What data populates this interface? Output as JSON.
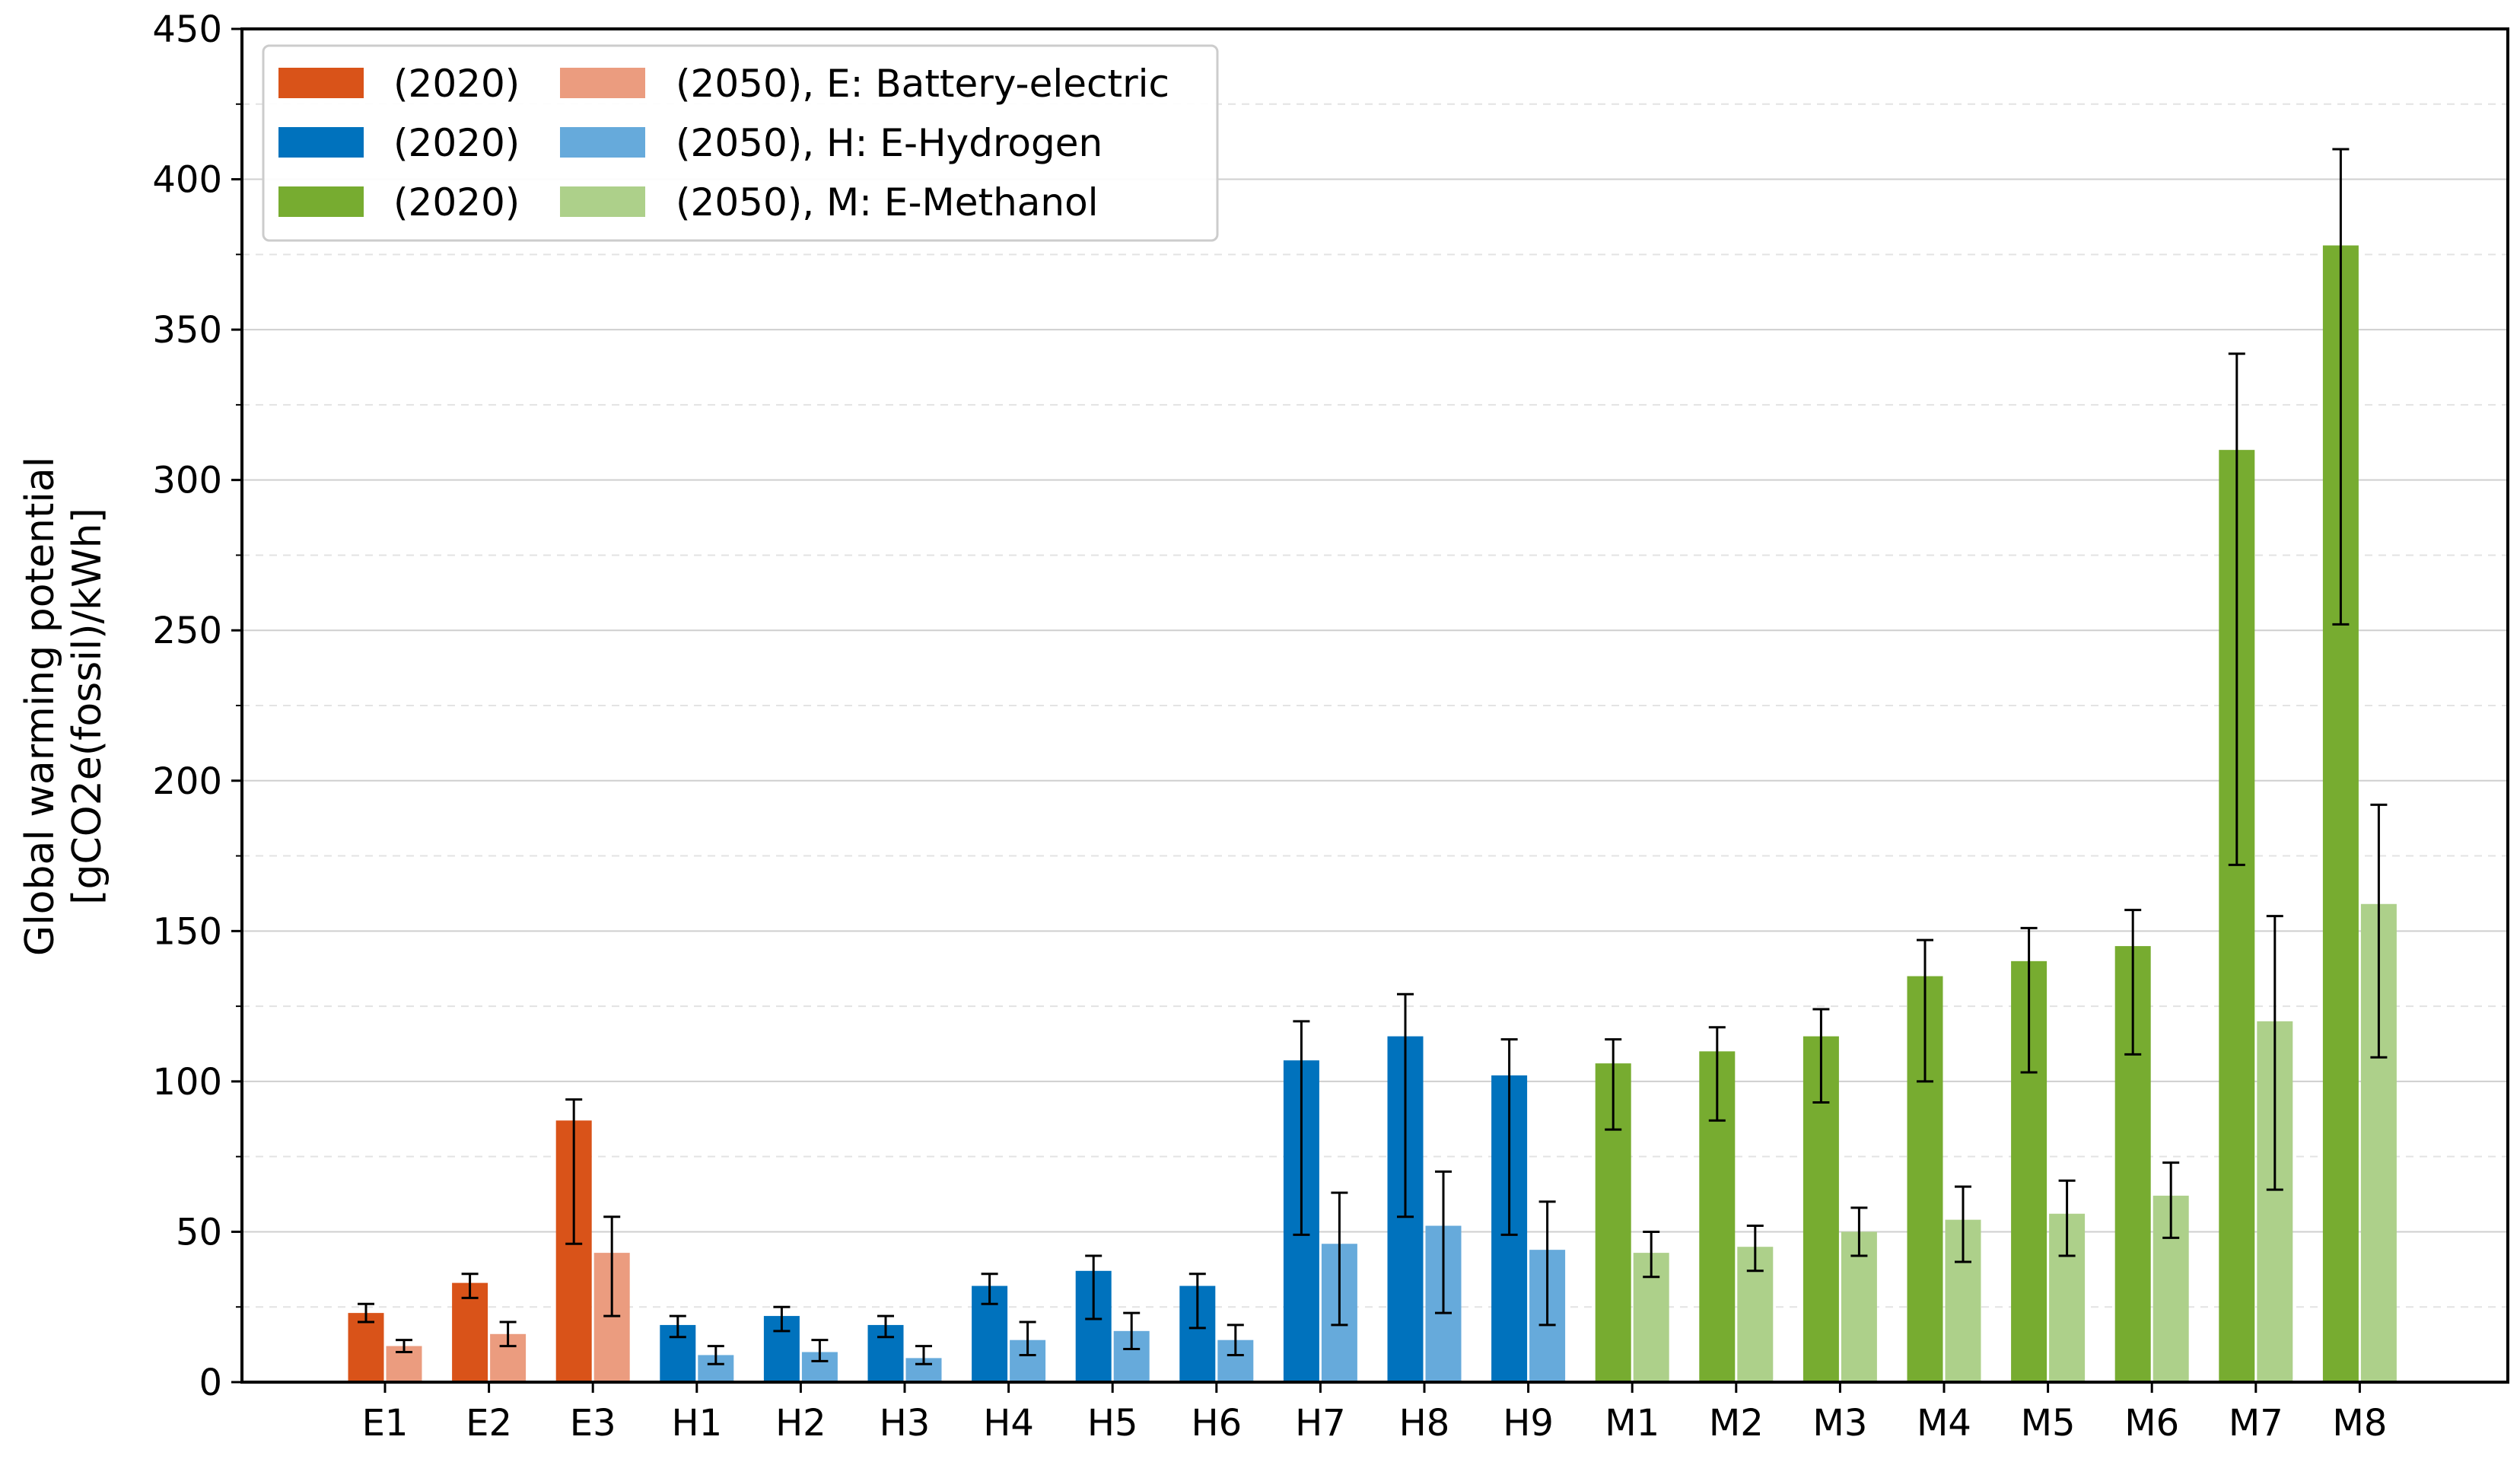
{
  "chart_data": {
    "type": "bar",
    "title": "",
    "xlabel": "",
    "ylabel_line1": "Global warming potential",
    "ylabel_line2": "[gCO2e(fossil)/kWh]",
    "ylim": [
      0,
      450
    ],
    "yticks": [
      0,
      50,
      100,
      150,
      200,
      250,
      300,
      350,
      400,
      450
    ],
    "grid": true,
    "legend_position": "top-left",
    "categories": [
      "E1",
      "E2",
      "E3",
      "H1",
      "H2",
      "H3",
      "H4",
      "H5",
      "H6",
      "H7",
      "H8",
      "H9",
      "M1",
      "M2",
      "M3",
      "M4",
      "M5",
      "M6",
      "M7",
      "M8"
    ],
    "groups": [
      {
        "key": "E",
        "name": "Battery-electric",
        "categories": [
          "E1",
          "E2",
          "E3"
        ],
        "color_2020": "#D95319",
        "color_2050": "#EB9C7F"
      },
      {
        "key": "H",
        "name": "E-Hydrogen",
        "categories": [
          "H1",
          "H2",
          "H3",
          "H4",
          "H5",
          "H6",
          "H7",
          "H8",
          "H9"
        ],
        "color_2020": "#0072BD",
        "color_2050": "#66AADB"
      },
      {
        "key": "M",
        "name": "E-Methanol",
        "categories": [
          "M1",
          "M2",
          "M3",
          "M4",
          "M5",
          "M6",
          "M7",
          "M8"
        ],
        "color_2020": "#77AC30",
        "color_2050": "#ADD08A"
      }
    ],
    "series": [
      {
        "name": "(2020)",
        "values": [
          23,
          33,
          87,
          19,
          22,
          19,
          32,
          37,
          32,
          107,
          115,
          102,
          106,
          110,
          115,
          135,
          140,
          145,
          310,
          378
        ],
        "err_low": [
          20,
          28,
          46,
          15,
          17,
          15,
          26,
          21,
          18,
          49,
          55,
          49,
          84,
          87,
          93,
          100,
          103,
          109,
          172,
          252
        ],
        "err_high": [
          26,
          36,
          94,
          22,
          25,
          22,
          36,
          42,
          36,
          120,
          129,
          114,
          114,
          118,
          124,
          147,
          151,
          157,
          342,
          410
        ]
      },
      {
        "name": "(2050)",
        "values": [
          12,
          16,
          43,
          9,
          10,
          8,
          14,
          17,
          14,
          46,
          52,
          44,
          43,
          45,
          50,
          54,
          56,
          62,
          120,
          159
        ],
        "err_low": [
          10,
          12,
          22,
          6,
          7,
          6,
          9,
          11,
          9,
          19,
          23,
          19,
          35,
          37,
          42,
          40,
          42,
          48,
          64,
          108
        ],
        "err_high": [
          14,
          20,
          55,
          12,
          14,
          12,
          20,
          23,
          19,
          63,
          70,
          60,
          50,
          52,
          58,
          65,
          67,
          73,
          155,
          192
        ]
      }
    ],
    "legend": [
      {
        "label_2020": "(2020)",
        "label_2050": "(2050), E: Battery-electric",
        "group": "E"
      },
      {
        "label_2020": "(2020)",
        "label_2050": "(2050), H: E-Hydrogen",
        "group": "H"
      },
      {
        "label_2020": "(2020)",
        "label_2050": "(2050), M: E-Methanol",
        "group": "M"
      }
    ]
  }
}
